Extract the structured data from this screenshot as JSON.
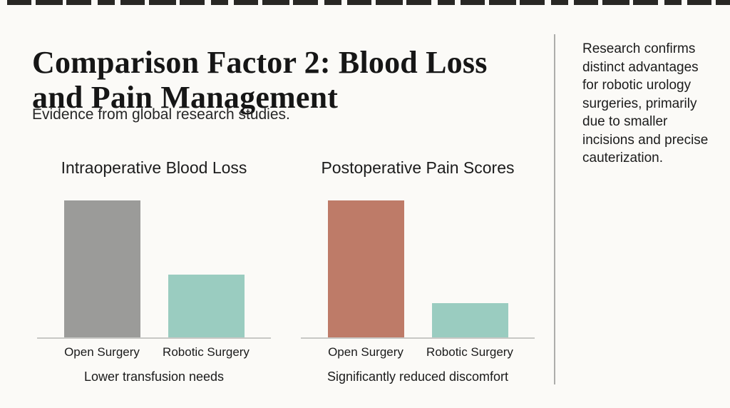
{
  "header": {
    "title_line1": "Comparison Factor 2: Blood Loss",
    "title_line2": "and Pain Management",
    "subtitle": "Evidence from global research studies."
  },
  "chart_data": [
    {
      "type": "bar",
      "title": "Intraoperative Blood Loss",
      "categories": [
        "Open Surgery",
        "Robotic Surgery"
      ],
      "values": [
        100,
        46
      ],
      "bar_colors": [
        "#9b9b99",
        "#9accc0"
      ],
      "caption": "Lower transfusion needs",
      "xlabel": "",
      "ylabel": "",
      "ylim": [
        0,
        100
      ],
      "grid": false,
      "legend": false
    },
    {
      "type": "bar",
      "title": "Postoperative Pain Scores",
      "categories": [
        "Open Surgery",
        "Robotic Surgery"
      ],
      "values": [
        100,
        25
      ],
      "bar_colors": [
        "#be7b68",
        "#9accc0"
      ],
      "caption": "Significantly reduced discomfort",
      "xlabel": "",
      "ylabel": "",
      "ylim": [
        0,
        100
      ],
      "grid": false,
      "legend": false
    }
  ],
  "sidebar": {
    "note": "Research confirms distinct advantages for robotic urology surgeries, primarily due to smaller incisions and precise cauterization."
  },
  "colors": {
    "background": "#fbfaf7",
    "divider": "#adadab",
    "axis_line": "#c8c8c5",
    "open_surgery_blood": "#9b9b99",
    "open_surgery_pain": "#be7b68",
    "robotic_surgery": "#9accc0"
  }
}
